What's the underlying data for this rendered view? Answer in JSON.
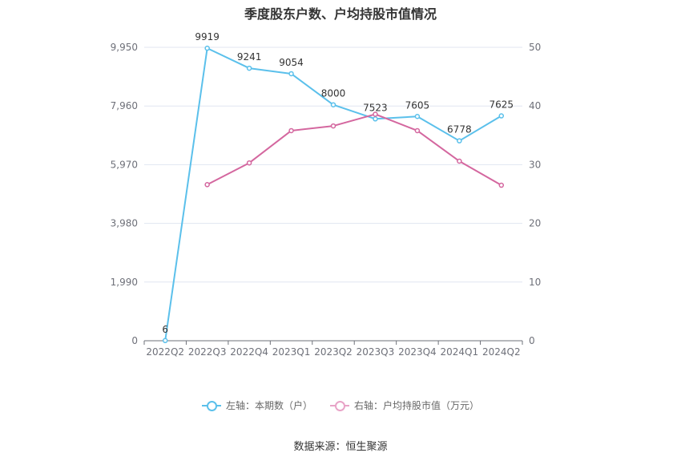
{
  "title": "季度股东户数、户均持股市值情况",
  "source": "数据来源：恒生聚源",
  "chart_data": {
    "type": "line",
    "categories": [
      "2022Q2",
      "2022Q3",
      "2022Q4",
      "2023Q1",
      "2023Q2",
      "2023Q3",
      "2023Q4",
      "2024Q1",
      "2024Q2"
    ],
    "y_left": {
      "ticks": [
        "0",
        "1,990",
        "3,980",
        "5,970",
        "7,960",
        "9,950"
      ],
      "range": [
        0,
        9950
      ]
    },
    "y_right": {
      "ticks": [
        "0",
        "10",
        "20",
        "30",
        "40",
        "50"
      ],
      "range": [
        0,
        50
      ]
    },
    "grid": true,
    "legend_position": "bottom",
    "series": [
      {
        "name": "左轴：本期数（户）",
        "axis": "left",
        "color": "#5bc0eb",
        "values": [
          6,
          9919,
          9241,
          9054,
          8000,
          7523,
          7605,
          6778,
          7625
        ],
        "labels": [
          "6",
          "9919",
          "9241",
          "9054",
          "8000",
          "7523",
          "7605",
          "6778",
          "7625"
        ]
      },
      {
        "name": "右轴：户均持股市值（万元）",
        "axis": "right",
        "color": "#d4679f",
        "values": [
          null,
          26.6,
          30.3,
          35.8,
          36.6,
          38.6,
          35.8,
          30.6,
          26.5
        ]
      }
    ]
  }
}
